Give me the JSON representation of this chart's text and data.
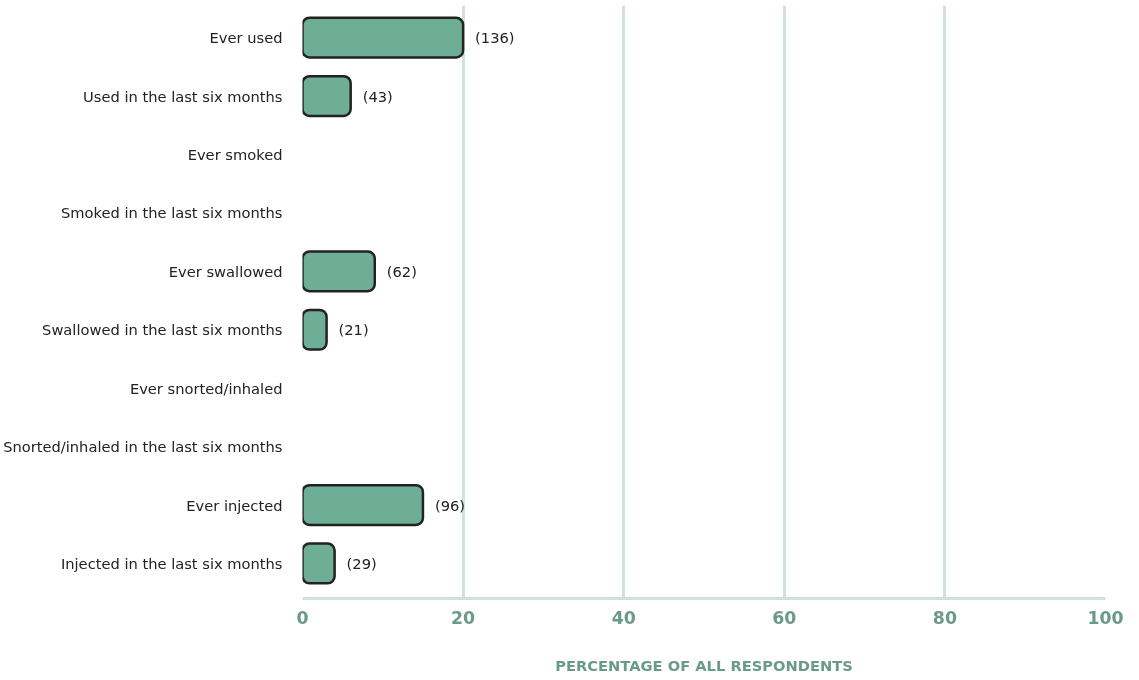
{
  "chart_data": {
    "type": "bar",
    "orientation": "horizontal",
    "xlabel": "PERCENTAGE OF ALL RESPONDENTS",
    "categories": [
      "Ever used",
      "Used in the last six months",
      "Ever smoked",
      "Smoked in the last six months",
      "Ever swallowed",
      "Swallowed in the last six months",
      "Ever snorted/inhaled",
      "Snorted/inhaled in the last six months",
      "Ever injected",
      "Injected in the last six months"
    ],
    "values": [
      20,
      6,
      null,
      null,
      9,
      3,
      null,
      null,
      15,
      4
    ],
    "annotations": [
      {
        "text": "(136)",
        "x": 20,
        "y": "Ever used"
      },
      {
        "text": "(43)",
        "x": 6,
        "y": "Used in the last six months"
      },
      {
        "text": "(62)",
        "x": 9,
        "y": "Ever swallowed"
      },
      {
        "text": "(21)",
        "x": 3,
        "y": "Swallowed in the last six months"
      },
      {
        "text": "(96)",
        "x": 15,
        "y": "Ever injected"
      },
      {
        "text": "(29)",
        "x": 4,
        "y": "Injected in the last six months"
      }
    ],
    "color": "#6fae96",
    "xlim": [
      0,
      100
    ],
    "xticks": [
      0,
      20,
      40,
      60,
      80,
      100
    ],
    "grid": "x"
  }
}
